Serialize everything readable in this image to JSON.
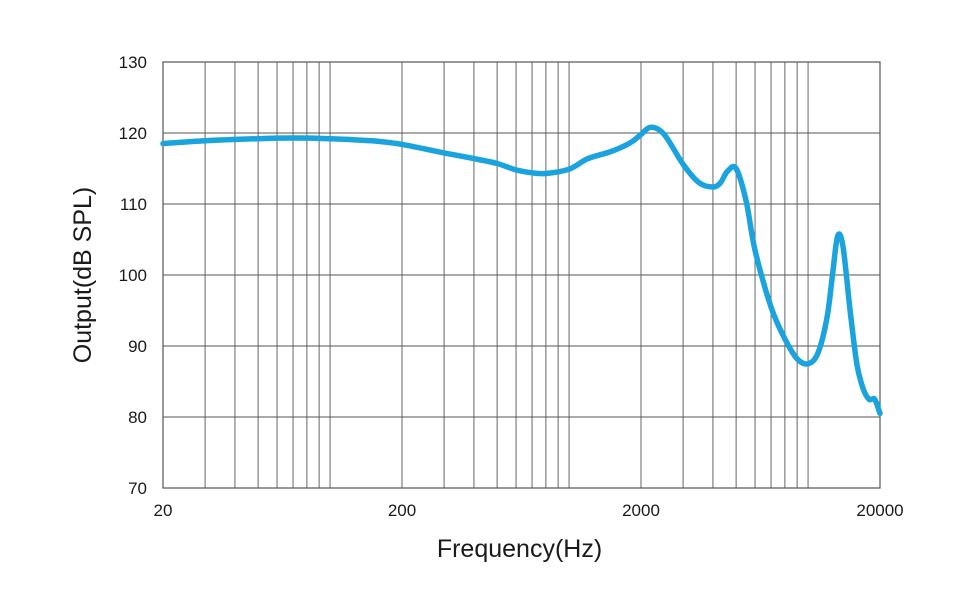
{
  "chart_data": {
    "type": "line",
    "title": "",
    "xlabel": "Frequency(Hz)",
    "ylabel": "Output(dB SPL)",
    "xscale": "log",
    "xlim": [
      20,
      20000
    ],
    "ylim": [
      70,
      130
    ],
    "x_ticks": [
      20,
      200,
      2000,
      20000
    ],
    "x_tick_labels": [
      "20",
      "200",
      "2000",
      "20000"
    ],
    "y_ticks": [
      70,
      80,
      90,
      100,
      110,
      120,
      130
    ],
    "y_tick_labels": [
      "70",
      "80",
      "90",
      "100",
      "110",
      "120",
      "130"
    ],
    "grid": true,
    "legend": "none",
    "line_color": "#1aa3dc",
    "grid_color": "#555555",
    "series": [
      {
        "x": [
          20,
          30,
          50,
          70,
          100,
          150,
          200,
          300,
          400,
          500,
          600,
          700,
          800,
          1000,
          1200,
          1500,
          1800,
          2000,
          2200,
          2500,
          3000,
          3500,
          4000,
          4300,
          4600,
          5000,
          5500,
          6000,
          7000,
          8000,
          9000,
          10000,
          11000,
          12000,
          12700,
          13300,
          14000,
          15000,
          16000,
          17000,
          18000,
          19000,
          20000
        ],
        "y": [
          118.5,
          118.9,
          119.2,
          119.3,
          119.2,
          118.9,
          118.4,
          117.2,
          116.4,
          115.7,
          114.8,
          114.4,
          114.3,
          114.9,
          116.4,
          117.4,
          118.6,
          119.8,
          120.8,
          119.8,
          115.6,
          113.0,
          112.4,
          113.0,
          114.6,
          115.0,
          110.5,
          103.5,
          95.5,
          91.0,
          88.2,
          87.5,
          89.0,
          94.0,
          100.5,
          105.5,
          104.0,
          95.0,
          87.5,
          84.0,
          82.5,
          82.5,
          80.5
        ]
      }
    ]
  }
}
